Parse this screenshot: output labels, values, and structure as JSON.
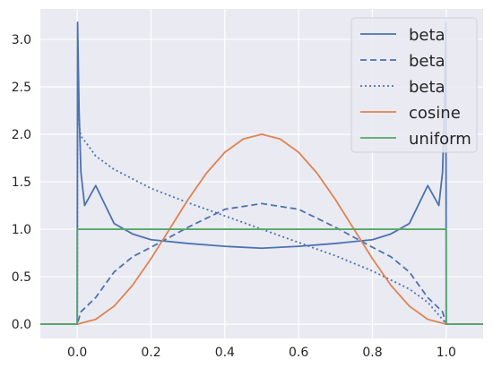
{
  "chart_data": {
    "type": "line",
    "title": "",
    "xlabel": "",
    "ylabel": "",
    "xlim": [
      -0.1,
      1.1
    ],
    "ylim": [
      -0.15,
      3.32
    ],
    "grid": true,
    "legend_position": "top-right",
    "x_ticks": [
      0.0,
      0.2,
      0.4,
      0.6,
      0.8,
      1.0
    ],
    "x_tick_labels": [
      "0.0",
      "0.2",
      "0.4",
      "0.6",
      "0.8",
      "1.0"
    ],
    "y_ticks": [
      0.0,
      0.5,
      1.0,
      1.5,
      2.0,
      2.5,
      3.0
    ],
    "y_tick_labels": [
      "0.0",
      "0.5",
      "1.0",
      "1.5",
      "2.0",
      "2.5",
      "3.0"
    ],
    "series": [
      {
        "name": "beta",
        "color": "#4c72b0",
        "dash": "solid",
        "x": [
          -0.1,
          0.0,
          0.001,
          0.005,
          0.01,
          0.02,
          0.05,
          0.1,
          0.15,
          0.2,
          0.3,
          0.4,
          0.5,
          0.6,
          0.7,
          0.8,
          0.85,
          0.9,
          0.95,
          0.98,
          0.99,
          0.995,
          0.999,
          1.0,
          1.1
        ],
        "y": [
          0.0,
          0.0,
          3.18,
          2.25,
          1.6,
          1.25,
          1.46,
          1.06,
          0.95,
          0.89,
          0.85,
          0.82,
          0.8,
          0.82,
          0.85,
          0.89,
          0.95,
          1.06,
          1.46,
          1.25,
          1.6,
          2.25,
          3.18,
          0.0,
          0.0
        ]
      },
      {
        "name": "beta",
        "color": "#4c72b0",
        "dash": "dashed",
        "x": [
          -0.1,
          0.0,
          0.01,
          0.05,
          0.1,
          0.15,
          0.2,
          0.3,
          0.4,
          0.5,
          0.6,
          0.7,
          0.8,
          0.85,
          0.9,
          0.95,
          0.99,
          1.0,
          1.1
        ],
        "y": [
          0.0,
          0.0,
          0.13,
          0.28,
          0.55,
          0.71,
          0.81,
          1.02,
          1.21,
          1.27,
          1.21,
          1.02,
          0.81,
          0.71,
          0.55,
          0.28,
          0.13,
          0.0,
          0.0
        ]
      },
      {
        "name": "beta",
        "color": "#4c72b0",
        "dash": "dotted",
        "x": [
          -0.1,
          0.0,
          0.001,
          0.005,
          0.01,
          0.03,
          0.05,
          0.1,
          0.2,
          0.3,
          0.4,
          0.5,
          0.6,
          0.7,
          0.8,
          0.9,
          0.95,
          0.99,
          1.0,
          1.1
        ],
        "y": [
          0.0,
          0.0,
          2.3,
          2.1,
          1.98,
          1.88,
          1.77,
          1.63,
          1.43,
          1.28,
          1.14,
          1.0,
          0.86,
          0.72,
          0.56,
          0.37,
          0.23,
          0.05,
          0.0,
          0.0
        ]
      },
      {
        "name": "cosine",
        "color": "#dd8452",
        "dash": "solid",
        "x": [
          -0.1,
          0.0,
          0.05,
          0.1,
          0.15,
          0.2,
          0.25,
          0.3,
          0.35,
          0.4,
          0.45,
          0.5,
          0.55,
          0.6,
          0.65,
          0.7,
          0.75,
          0.8,
          0.85,
          0.9,
          0.95,
          1.0,
          1.1
        ],
        "y": [
          0.0,
          0.0,
          0.05,
          0.19,
          0.41,
          0.69,
          1.0,
          1.31,
          1.59,
          1.81,
          1.95,
          2.0,
          1.95,
          1.81,
          1.59,
          1.31,
          1.0,
          0.69,
          0.41,
          0.19,
          0.05,
          0.0,
          0.0
        ]
      },
      {
        "name": "uniform",
        "color": "#55a868",
        "dash": "solid",
        "x": [
          -0.1,
          0.0,
          0.0,
          1.0,
          1.0,
          1.1
        ],
        "y": [
          0.0,
          0.0,
          1.0,
          1.0,
          0.0,
          0.0
        ]
      }
    ]
  }
}
